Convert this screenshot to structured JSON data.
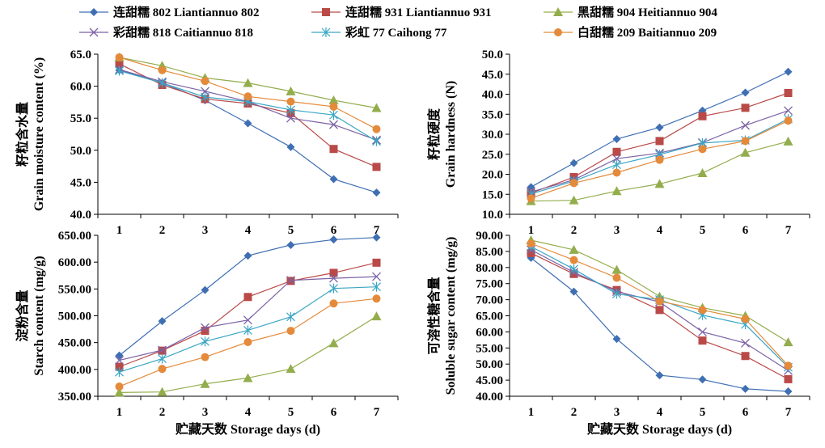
{
  "figure": {
    "x_title": "贮藏天数 Storage days (d)"
  },
  "legend": [
    {
      "label": "连甜糯 802 Liantiannuo 802",
      "color": "#3f6fb3",
      "marker": "diamond",
      "icon": "diamond-marker-icon"
    },
    {
      "label": "连甜糯 931 Liantiannuo 931",
      "color": "#b94a48",
      "marker": "square",
      "icon": "square-marker-icon"
    },
    {
      "label": "黑甜糯 904 Heitiannuo 904",
      "color": "#93ad4c",
      "marker": "triangle",
      "icon": "triangle-marker-icon"
    },
    {
      "label": "彩甜糯 818 Caitiannuo 818",
      "color": "#7b62a5",
      "marker": "x",
      "icon": "x-marker-icon"
    },
    {
      "label": "彩虹 77 Caihong 77",
      "color": "#3aa6c4",
      "marker": "star",
      "icon": "asterisk-marker-icon"
    },
    {
      "label": "白甜糯 209 Baitiannuo 209",
      "color": "#e48a3b",
      "marker": "circle",
      "icon": "circle-marker-icon"
    }
  ],
  "chart_data": [
    {
      "type": "line",
      "ylabel_cn": "籽粒含水量",
      "ylabel_en": "Grain moisture content (%)",
      "xlabel": "贮藏天数 Storage days (d)",
      "x": [
        1,
        2,
        3,
        4,
        5,
        6,
        7
      ],
      "ylim": [
        40.0,
        65.0
      ],
      "yticks": [
        "40.0",
        "45.0",
        "50.0",
        "55.0",
        "60.0",
        "65.0"
      ],
      "series": [
        {
          "name": "连甜糯 802 Liantiannuo 802",
          "values": [
            62.5,
            60.5,
            57.8,
            54.2,
            50.5,
            45.5,
            43.4
          ]
        },
        {
          "name": "连甜糯 931 Liantiannuo 931",
          "values": [
            63.5,
            60.2,
            58.0,
            57.3,
            55.8,
            50.2,
            47.4
          ]
        },
        {
          "name": "黑甜糯 904 Heitiannuo 904",
          "values": [
            64.5,
            63.2,
            61.3,
            60.5,
            59.2,
            57.8,
            56.6
          ]
        },
        {
          "name": "彩甜糯 818 Caitiannuo 818",
          "values": [
            62.6,
            60.7,
            59.2,
            57.6,
            55.0,
            54.0,
            51.6
          ]
        },
        {
          "name": "彩虹 77 Caihong 77",
          "values": [
            62.4,
            60.5,
            58.3,
            57.6,
            56.3,
            55.5,
            51.4
          ]
        },
        {
          "name": "白甜糯 209 Baitiannuo 209",
          "values": [
            64.5,
            62.5,
            60.8,
            58.4,
            57.6,
            56.8,
            53.3
          ]
        }
      ]
    },
    {
      "type": "line",
      "ylabel_cn": "籽粒硬度",
      "ylabel_en": "Grain hardness (N)",
      "xlabel": "贮藏天数 Storage days (d)",
      "x": [
        1,
        2,
        3,
        4,
        5,
        6,
        7
      ],
      "ylim": [
        10.0,
        50.0
      ],
      "yticks": [
        "10.0",
        "15.0",
        "20.0",
        "25.0",
        "30.0",
        "35.0",
        "40.0",
        "45.0",
        "50.0"
      ],
      "series": [
        {
          "name": "连甜糯 802 Liantiannuo 802",
          "values": [
            16.8,
            22.8,
            28.8,
            31.7,
            35.9,
            40.4,
            45.6
          ]
        },
        {
          "name": "连甜糯 931 Liantiannuo 931",
          "values": [
            15.3,
            19.3,
            25.6,
            28.3,
            34.5,
            36.6,
            40.3
          ]
        },
        {
          "name": "黑甜糯 904 Heitiannuo 904",
          "values": [
            13.3,
            13.5,
            15.8,
            17.6,
            20.3,
            25.4,
            28.2
          ]
        },
        {
          "name": "彩甜糯 818 Caitiannuo 818",
          "values": [
            15.6,
            18.6,
            23.9,
            25.3,
            27.9,
            32.2,
            35.9
          ]
        },
        {
          "name": "彩虹 77 Caihong 77",
          "values": [
            15.1,
            18.3,
            22.4,
            24.9,
            27.8,
            28.5,
            33.8
          ]
        },
        {
          "name": "白甜糯 209 Baitiannuo 209",
          "values": [
            14.0,
            17.8,
            20.4,
            23.6,
            26.3,
            28.3,
            33.4
          ]
        }
      ]
    },
    {
      "type": "line",
      "ylabel_cn": "淀粉含量",
      "ylabel_en": "Starch content (mg/g)",
      "xlabel": "贮藏天数 Storage days (d)",
      "x": [
        1,
        2,
        3,
        4,
        5,
        6,
        7
      ],
      "ylim": [
        350.0,
        650.0
      ],
      "yticks": [
        "350.00",
        "400.00",
        "450.00",
        "500.00",
        "550.00",
        "600.00",
        "650.00"
      ],
      "series": [
        {
          "name": "连甜糯 802 Liantiannuo 802",
          "values": [
            426,
            490,
            548,
            612,
            632,
            642,
            646
          ]
        },
        {
          "name": "连甜糯 931 Liantiannuo 931",
          "values": [
            405,
            435,
            472,
            535,
            565,
            580,
            599
          ]
        },
        {
          "name": "黑甜糯 904 Heitiannuo 904",
          "values": [
            357,
            358,
            373,
            384,
            401,
            449,
            499
          ]
        },
        {
          "name": "彩甜糯 818 Caitiannuo 818",
          "values": [
            417,
            436,
            478,
            492,
            566,
            570,
            573
          ]
        },
        {
          "name": "彩虹 77 Caihong 77",
          "values": [
            395,
            420,
            452,
            473,
            498,
            551,
            554
          ]
        },
        {
          "name": "白甜糯 209 Baitiannuo 209",
          "values": [
            368,
            401,
            423,
            451,
            472,
            523,
            532
          ]
        }
      ]
    },
    {
      "type": "line",
      "ylabel_cn": "可溶性糖含量",
      "ylabel_en": "Soluble sugar content (mg/g)",
      "xlabel": "贮藏天数 Storage days (d)",
      "x": [
        1,
        2,
        3,
        4,
        5,
        6,
        7
      ],
      "ylim": [
        40.0,
        90.0
      ],
      "yticks": [
        "40.00",
        "45.00",
        "50.00",
        "55.00",
        "60.00",
        "65.00",
        "70.00",
        "75.00",
        "80.00",
        "85.00",
        "90.00"
      ],
      "series": [
        {
          "name": "连甜糯 802 Liantiannuo 802",
          "values": [
            83.0,
            72.5,
            57.8,
            46.5,
            45.2,
            42.3,
            41.5
          ]
        },
        {
          "name": "连甜糯 931 Liantiannuo 931",
          "values": [
            84.5,
            78.0,
            73.0,
            66.8,
            57.3,
            52.5,
            45.3
          ]
        },
        {
          "name": "黑甜糯 904 Heitiannuo 904",
          "values": [
            88.5,
            85.5,
            79.3,
            71.0,
            67.5,
            65.0,
            56.8
          ]
        },
        {
          "name": "彩甜糯 818 Caitiannuo 818",
          "values": [
            85.5,
            78.5,
            72.5,
            69.3,
            60.0,
            56.5,
            48.0
          ]
        },
        {
          "name": "彩虹 77 Caihong 77",
          "values": [
            86.5,
            79.5,
            71.8,
            70.0,
            65.2,
            62.3,
            49.0
          ]
        },
        {
          "name": "白甜糯 209 Baitiannuo 209",
          "values": [
            87.5,
            82.3,
            76.8,
            69.5,
            66.8,
            64.0,
            49.5
          ]
        }
      ]
    }
  ]
}
